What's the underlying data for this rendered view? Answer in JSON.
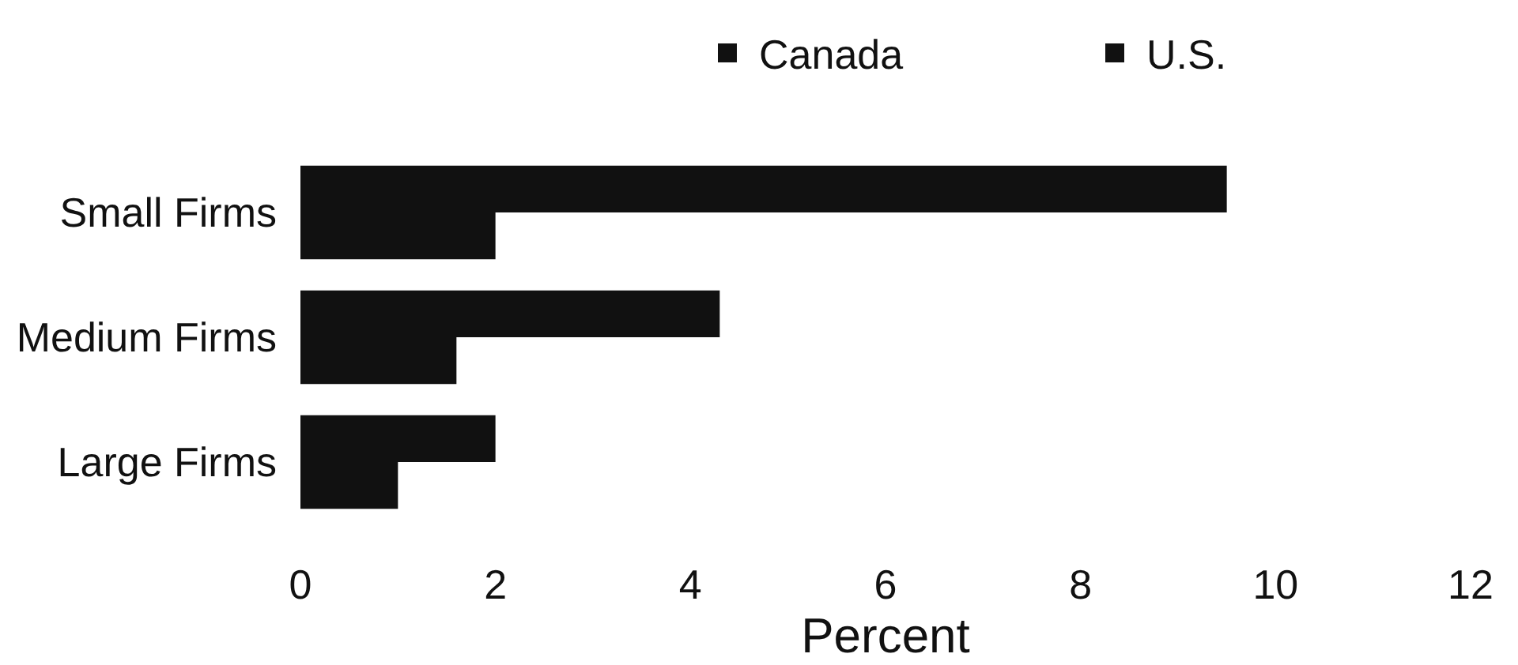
{
  "chart_data": {
    "type": "bar",
    "orientation": "horizontal",
    "xlabel": "Percent",
    "categories": [
      "Small Firms",
      "Medium Firms",
      "Large Firms"
    ],
    "series": [
      {
        "name": "Canada",
        "color": "#111111",
        "values": [
          9.5,
          4.3,
          2.0
        ]
      },
      {
        "name": "U.S.",
        "color": "#111111",
        "values": [
          2.0,
          1.6,
          1.0
        ]
      }
    ],
    "xlim": [
      0,
      12
    ],
    "xticks": [
      0,
      2,
      4,
      6,
      8,
      10,
      12
    ],
    "grid": false,
    "legend": "top right"
  }
}
